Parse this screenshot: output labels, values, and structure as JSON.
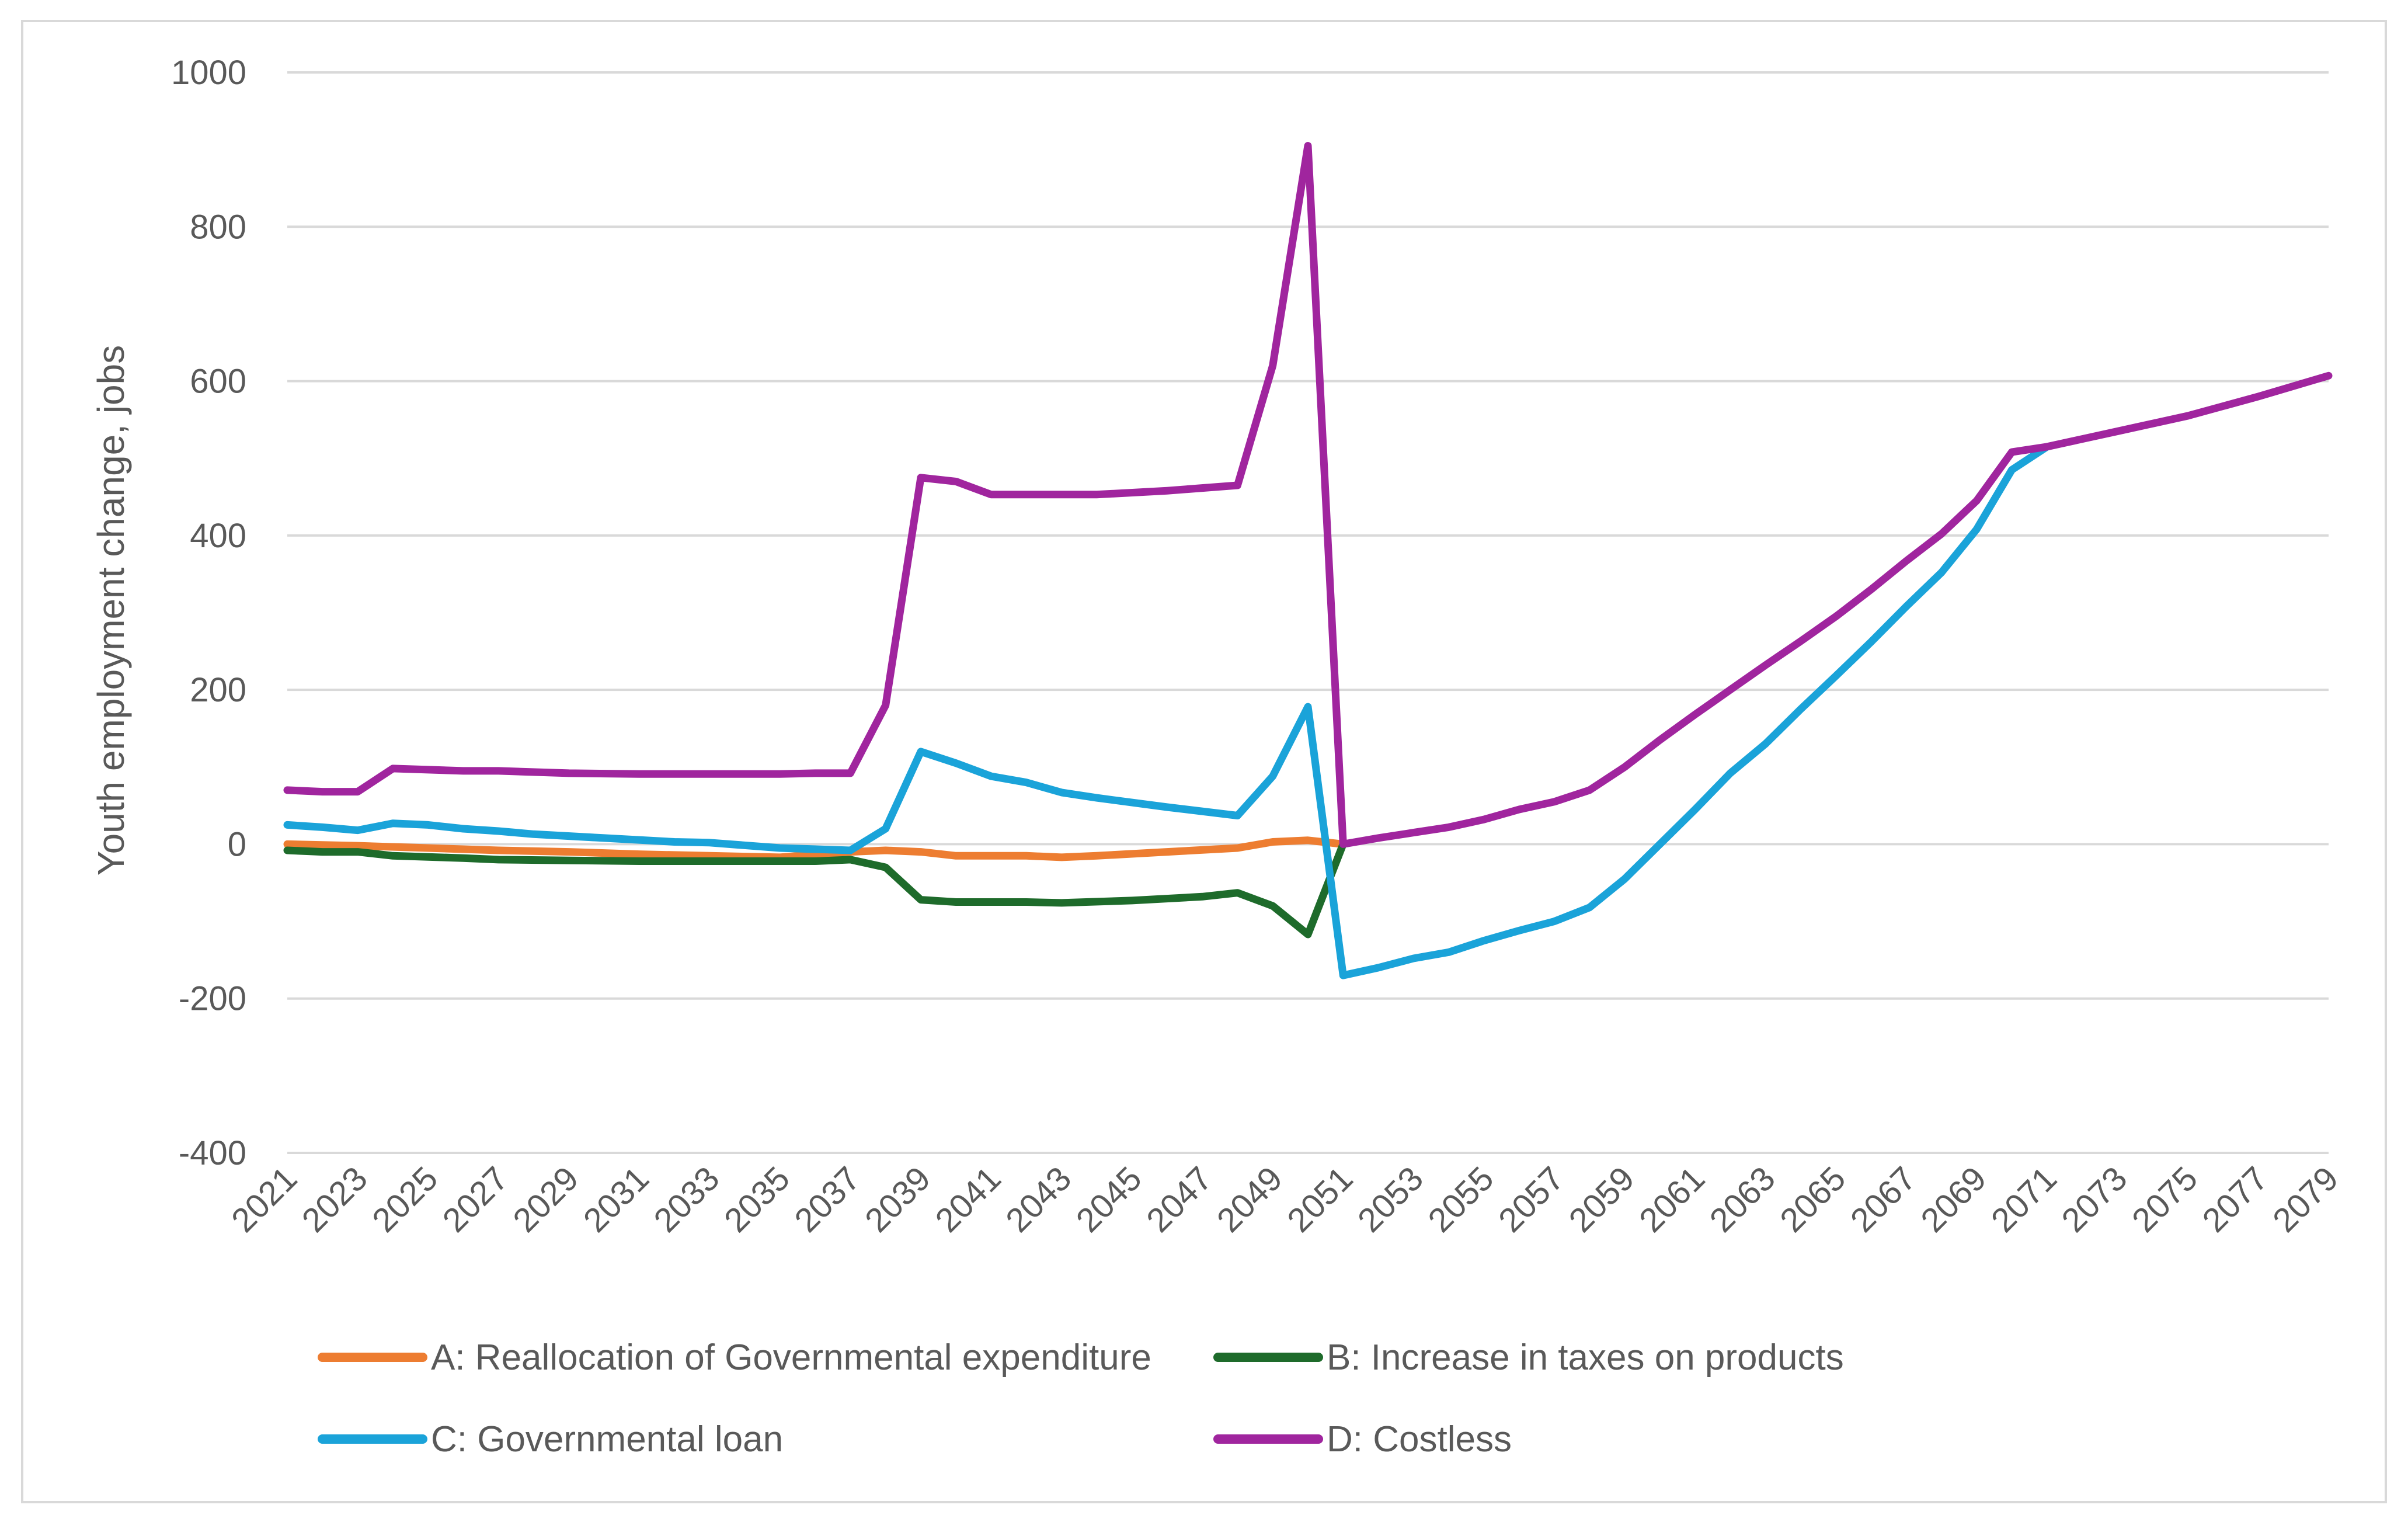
{
  "chart_data": {
    "type": "line",
    "title": "",
    "xlabel": "",
    "ylabel": "Youth employment change, jobs",
    "ylim": [
      -400,
      1000
    ],
    "yticks": [
      1000,
      800,
      600,
      400,
      200,
      0,
      -200,
      -400
    ],
    "ytick_labels": [
      "1000",
      "800",
      "600",
      "400",
      "200",
      "0",
      "-200",
      "-400"
    ],
    "xlim": [
      2021,
      2079
    ],
    "xtick_labels": [
      "2021",
      "2023",
      "2025",
      "2027",
      "2029",
      "2031",
      "2033",
      "2035",
      "2037",
      "2039",
      "2041",
      "2043",
      "2045",
      "2047",
      "2049",
      "2051",
      "2053",
      "2055",
      "2057",
      "2059",
      "2061",
      "2063",
      "2065",
      "2067",
      "2069",
      "2071",
      "2073",
      "2075",
      "2077",
      "2079"
    ],
    "grid": true,
    "legend_position": "bottom",
    "series": [
      {
        "name": "A: Reallocation of Governmental expenditure",
        "color": "#ED7D31",
        "points": [
          [
            2021,
            0
          ],
          [
            2023,
            -2
          ],
          [
            2025,
            -5
          ],
          [
            2027,
            -8
          ],
          [
            2029,
            -10
          ],
          [
            2031,
            -13
          ],
          [
            2033,
            -15
          ],
          [
            2035,
            -17
          ],
          [
            2037,
            -10
          ],
          [
            2038,
            -8
          ],
          [
            2039,
            -10
          ],
          [
            2040,
            -15
          ],
          [
            2042,
            -15
          ],
          [
            2043,
            -17
          ],
          [
            2044,
            -15
          ],
          [
            2046,
            -10
          ],
          [
            2048,
            -5
          ],
          [
            2049,
            3
          ],
          [
            2050,
            5
          ],
          [
            2051,
            0
          ]
        ]
      },
      {
        "name": "B: Increase in taxes on products",
        "color": "#1E6B2B",
        "points": [
          [
            2021,
            -8
          ],
          [
            2022,
            -10
          ],
          [
            2023,
            -10
          ],
          [
            2024,
            -15
          ],
          [
            2026,
            -18
          ],
          [
            2027,
            -20
          ],
          [
            2029,
            -21
          ],
          [
            2031,
            -22
          ],
          [
            2033,
            -22
          ],
          [
            2035,
            -22
          ],
          [
            2036,
            -22
          ],
          [
            2037,
            -20
          ],
          [
            2038,
            -30
          ],
          [
            2039,
            -72
          ],
          [
            2040,
            -75
          ],
          [
            2042,
            -75
          ],
          [
            2043,
            -76
          ],
          [
            2045,
            -73
          ],
          [
            2047,
            -68
          ],
          [
            2048,
            -63
          ],
          [
            2049,
            -80
          ],
          [
            2050,
            -117
          ],
          [
            2051,
            0
          ]
        ]
      },
      {
        "name": "C: Governmental loan",
        "color": "#1AA3D9",
        "points": [
          [
            2021,
            25
          ],
          [
            2022,
            22
          ],
          [
            2023,
            18
          ],
          [
            2024,
            27
          ],
          [
            2025,
            25
          ],
          [
            2026,
            20
          ],
          [
            2027,
            17
          ],
          [
            2028,
            13
          ],
          [
            2030,
            8
          ],
          [
            2032,
            3
          ],
          [
            2033,
            2
          ],
          [
            2035,
            -5
          ],
          [
            2037,
            -8
          ],
          [
            2038,
            20
          ],
          [
            2039,
            120
          ],
          [
            2040,
            105
          ],
          [
            2041,
            88
          ],
          [
            2042,
            80
          ],
          [
            2043,
            67
          ],
          [
            2044,
            60
          ],
          [
            2046,
            48
          ],
          [
            2048,
            37
          ],
          [
            2049,
            88
          ],
          [
            2050,
            178
          ],
          [
            2051,
            -170
          ],
          [
            2052,
            -160
          ],
          [
            2053,
            -148
          ],
          [
            2054,
            -140
          ],
          [
            2055,
            -125
          ],
          [
            2056,
            -112
          ],
          [
            2057,
            -100
          ],
          [
            2058,
            -82
          ],
          [
            2059,
            -45
          ],
          [
            2060,
            0
          ],
          [
            2061,
            45
          ],
          [
            2062,
            92
          ],
          [
            2063,
            130
          ],
          [
            2064,
            175
          ],
          [
            2065,
            218
          ],
          [
            2066,
            262
          ],
          [
            2067,
            308
          ],
          [
            2068,
            352
          ],
          [
            2069,
            408
          ],
          [
            2070,
            485
          ],
          [
            2071,
            515
          ]
        ]
      },
      {
        "name": "D: Costless",
        "color": "#A0259E",
        "points": [
          [
            2021,
            70
          ],
          [
            2022,
            68
          ],
          [
            2023,
            68
          ],
          [
            2024,
            98
          ],
          [
            2026,
            95
          ],
          [
            2027,
            95
          ],
          [
            2029,
            92
          ],
          [
            2031,
            91
          ],
          [
            2033,
            91
          ],
          [
            2035,
            91
          ],
          [
            2036,
            92
          ],
          [
            2037,
            92
          ],
          [
            2038,
            180
          ],
          [
            2039,
            475
          ],
          [
            2040,
            470
          ],
          [
            2041,
            453
          ],
          [
            2043,
            453
          ],
          [
            2044,
            453
          ],
          [
            2046,
            458
          ],
          [
            2048,
            465
          ],
          [
            2049,
            620
          ],
          [
            2050,
            905
          ],
          [
            2051,
            0
          ],
          [
            2052,
            8
          ],
          [
            2053,
            15
          ],
          [
            2054,
            22
          ],
          [
            2055,
            32
          ],
          [
            2056,
            45
          ],
          [
            2057,
            55
          ],
          [
            2058,
            70
          ],
          [
            2059,
            100
          ],
          [
            2060,
            135
          ],
          [
            2061,
            168
          ],
          [
            2062,
            200
          ],
          [
            2063,
            232
          ],
          [
            2064,
            263
          ],
          [
            2065,
            295
          ],
          [
            2066,
            330
          ],
          [
            2067,
            367
          ],
          [
            2068,
            402
          ],
          [
            2069,
            445
          ],
          [
            2070,
            508
          ],
          [
            2071,
            515
          ],
          [
            2073,
            535
          ],
          [
            2075,
            555
          ],
          [
            2077,
            580
          ],
          [
            2079,
            607
          ]
        ]
      }
    ]
  }
}
